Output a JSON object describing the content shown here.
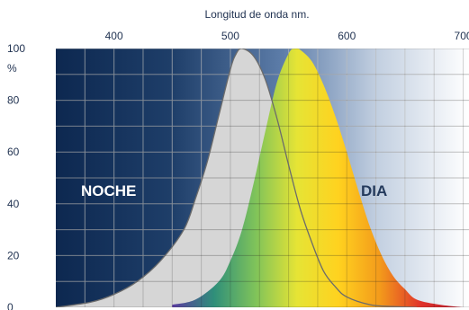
{
  "chart_data": {
    "type": "area",
    "title": "Longitud de onda nm.",
    "xlabel": "Longitud de onda nm.",
    "ylabel": "%",
    "x_ticks": [
      400,
      500,
      600,
      700
    ],
    "y_ticks": [
      0,
      20,
      40,
      60,
      80,
      100
    ],
    "xlim": [
      350,
      705
    ],
    "ylim": [
      0,
      100
    ],
    "grid": true,
    "series": [
      {
        "name": "NOCHE",
        "color": "#d6d6d6",
        "x": [
          350,
          380,
          400,
          420,
          440,
          460,
          470,
          480,
          490,
          500,
          505,
          510,
          520,
          530,
          540,
          550,
          560,
          570,
          580,
          590,
          600,
          620,
          640,
          660
        ],
        "y": [
          0,
          2,
          5,
          10,
          18,
          30,
          42,
          56,
          74,
          92,
          98,
          100,
          97,
          88,
          73,
          55,
          38,
          25,
          14,
          8,
          4,
          1,
          0.3,
          0
        ]
      },
      {
        "name": "DIA",
        "color_stops": [
          "#5a3aa0",
          "#2f8f7a",
          "#7fc35a",
          "#e6e435",
          "#ffd21f",
          "#f39a1b",
          "#e0322b",
          "#b51a2c"
        ],
        "x": [
          450,
          470,
          490,
          500,
          510,
          520,
          530,
          540,
          550,
          555,
          560,
          570,
          580,
          590,
          600,
          610,
          620,
          630,
          640,
          650,
          660,
          680,
          700
        ],
        "y": [
          1,
          3,
          10,
          18,
          30,
          48,
          68,
          87,
          98,
          100,
          99.5,
          95,
          86,
          74,
          60,
          45,
          31,
          20,
          12,
          7,
          3,
          1,
          0
        ]
      }
    ],
    "annotations": [
      "NOCHE",
      "DIA"
    ]
  }
}
